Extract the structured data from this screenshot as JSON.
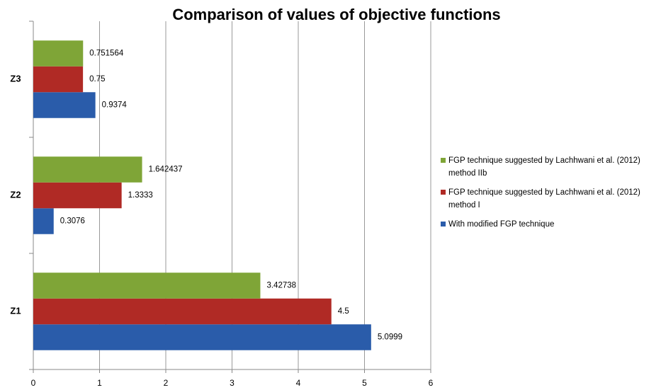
{
  "chart_data": {
    "type": "barh",
    "title": "Comparison of values of objective functions",
    "categories": [
      "Z1",
      "Z2",
      "Z3"
    ],
    "series": [
      {
        "name": "With modified FGP technique",
        "color": "#2a5caa",
        "values": [
          5.0999,
          0.3076,
          0.9374
        ]
      },
      {
        "name": "FGP technique suggested by Lachhwani et al. (2012) method I",
        "color": "#b02a25",
        "values": [
          4.5,
          1.3333,
          0.75
        ]
      },
      {
        "name": "FGP technique suggested by Lachhwani et al. (2012) method IIb",
        "color": "#7fa537",
        "values": [
          3.42738,
          1.642437,
          0.751564
        ]
      }
    ],
    "xlim": [
      0,
      6
    ],
    "xticks": [
      0,
      1,
      2,
      3,
      4,
      5,
      6
    ],
    "grid": true,
    "legend": "right"
  }
}
